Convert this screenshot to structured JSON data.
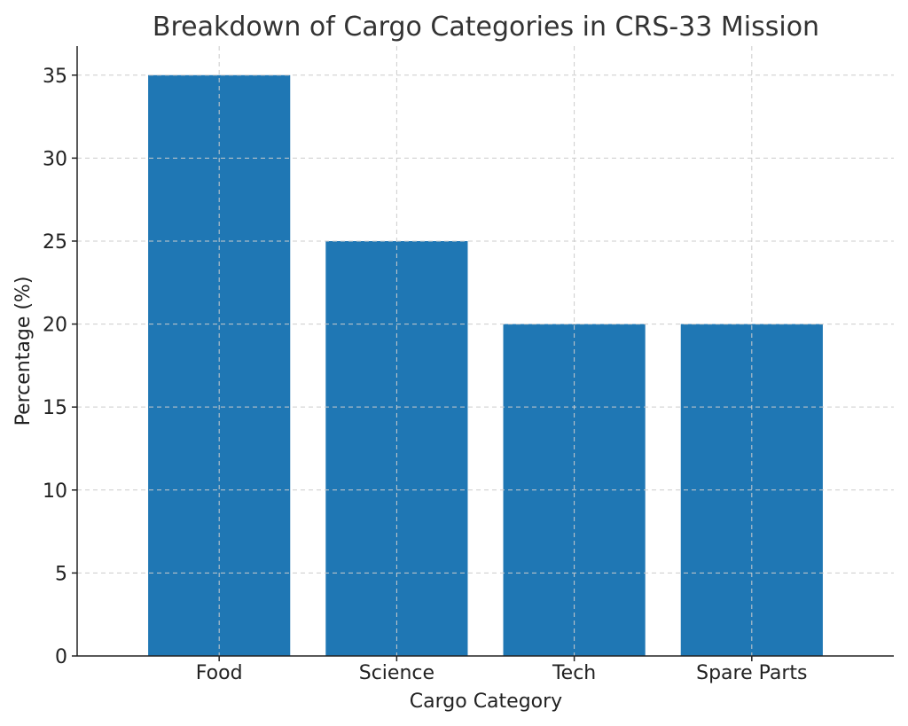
{
  "chart_data": {
    "type": "bar",
    "title": "Breakdown of Cargo Categories in CRS-33 Mission",
    "xlabel": "Cargo Category",
    "ylabel": "Percentage (%)",
    "categories": [
      "Food",
      "Science",
      "Tech",
      "Spare Parts"
    ],
    "values": [
      35,
      25,
      20,
      20
    ],
    "ylim": [
      0,
      36.75
    ],
    "yticks": [
      0,
      5,
      10,
      15,
      20,
      25,
      30,
      35
    ],
    "grid": true,
    "bar_color": "#1f77b4"
  }
}
